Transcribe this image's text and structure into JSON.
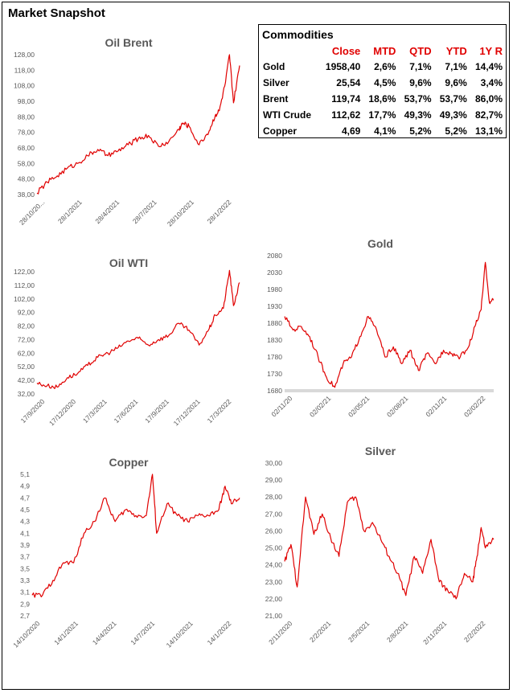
{
  "page": {
    "title": "Market Snapshot"
  },
  "commodities": {
    "title": "Commodities",
    "columns": [
      "",
      "Close",
      "MTD",
      "QTD",
      "YTD",
      "1Y R"
    ],
    "rows": [
      {
        "name": "Gold",
        "close": "1958,40",
        "mtd": "2,6%",
        "qtd": "7,1%",
        "ytd": "7,1%",
        "y1": "14,4%"
      },
      {
        "name": "Silver",
        "close": "25,54",
        "mtd": "4,5%",
        "qtd": "9,6%",
        "ytd": "9,6%",
        "y1": "3,4%"
      },
      {
        "name": "Brent",
        "close": "119,74",
        "mtd": "18,6%",
        "qtd": "53,7%",
        "ytd": "53,7%",
        "y1": "86,0%"
      },
      {
        "name": "WTI Crude",
        "close": "112,62",
        "mtd": "17,7%",
        "qtd": "49,3%",
        "ytd": "49,3%",
        "y1": "82,7%"
      },
      {
        "name": "Copper",
        "close": "4,69",
        "mtd": "4,1%",
        "qtd": "5,2%",
        "ytd": "5,2%",
        "y1": "13,1%"
      }
    ]
  },
  "chart_data": [
    {
      "id": "brent",
      "type": "line",
      "title": "Oil Brent",
      "color": "#e00000",
      "ylim": [
        38,
        128
      ],
      "yticks": [
        "38,00",
        "48,00",
        "58,00",
        "68,00",
        "78,00",
        "88,00",
        "98,00",
        "108,00",
        "118,00",
        "128,00"
      ],
      "xticks": [
        "28/10/20...",
        "28/1/2021",
        "28/4/2021",
        "28/7/2021",
        "28/10/2021",
        "28/1/2022"
      ],
      "x": [
        0,
        0.05,
        0.1,
        0.15,
        0.2,
        0.25,
        0.3,
        0.35,
        0.4,
        0.45,
        0.5,
        0.55,
        0.6,
        0.65,
        0.7,
        0.72,
        0.75,
        0.8,
        0.85,
        0.88,
        0.9,
        0.93,
        0.95,
        0.97,
        1.0
      ],
      "y": [
        39,
        46,
        50,
        55,
        58,
        63,
        67,
        63,
        66,
        70,
        74,
        76,
        69,
        72,
        80,
        84,
        82,
        70,
        79,
        89,
        92,
        110,
        128,
        97,
        121
      ]
    },
    {
      "id": "wti",
      "type": "line",
      "title": "Oil WTI",
      "color": "#e00000",
      "ylim": [
        32,
        122
      ],
      "yticks": [
        "32,00",
        "42,00",
        "52,00",
        "62,00",
        "72,00",
        "82,00",
        "92,00",
        "102,00",
        "112,00",
        "122,00"
      ],
      "xticks": [
        "17/9/2020",
        "17/12/2020",
        "17/3/2021",
        "17/6/2021",
        "17/9/2021",
        "17/12/2021",
        "17/3/2022"
      ],
      "x": [
        0,
        0.05,
        0.1,
        0.15,
        0.2,
        0.25,
        0.3,
        0.35,
        0.4,
        0.45,
        0.5,
        0.55,
        0.6,
        0.65,
        0.7,
        0.75,
        0.8,
        0.85,
        0.88,
        0.92,
        0.95,
        0.97,
        1.0
      ],
      "y": [
        40,
        38,
        37,
        44,
        47,
        53,
        59,
        62,
        66,
        71,
        73,
        68,
        72,
        75,
        84,
        79,
        68,
        80,
        90,
        95,
        123,
        97,
        114
      ]
    },
    {
      "id": "gold",
      "type": "line",
      "title": "Gold",
      "color": "#e00000",
      "ylim": [
        1680,
        2080
      ],
      "yticks": [
        "1680",
        "1730",
        "1780",
        "1830",
        "1880",
        "1930",
        "1980",
        "2030",
        "2080"
      ],
      "xticks": [
        "02/11/20",
        "02/02/21",
        "02/05/21",
        "02/08/21",
        "02/11/21",
        "02/02/22"
      ],
      "x": [
        0,
        0.04,
        0.08,
        0.12,
        0.16,
        0.2,
        0.24,
        0.28,
        0.32,
        0.36,
        0.4,
        0.44,
        0.48,
        0.52,
        0.56,
        0.6,
        0.64,
        0.68,
        0.72,
        0.76,
        0.8,
        0.84,
        0.88,
        0.91,
        0.94,
        0.96,
        0.98,
        1.0
      ],
      "y": [
        1900,
        1860,
        1870,
        1840,
        1780,
        1720,
        1690,
        1760,
        1780,
        1840,
        1900,
        1860,
        1780,
        1810,
        1760,
        1800,
        1740,
        1790,
        1760,
        1800,
        1790,
        1780,
        1810,
        1870,
        1920,
        2060,
        1940,
        1950
      ]
    },
    {
      "id": "copper",
      "type": "line",
      "title": "Copper",
      "color": "#e00000",
      "ylim": [
        2.7,
        5.1
      ],
      "yticks": [
        "2,7",
        "2,9",
        "3,1",
        "3,3",
        "3,5",
        "3,7",
        "3,9",
        "4,1",
        "4,3",
        "4,5",
        "4,7",
        "4,9",
        "5,1"
      ],
      "xticks": [
        "14/10/2020",
        "14/1/2021",
        "14/4/2021",
        "14/7/2021",
        "14/10/2021",
        "14/1/2022"
      ],
      "x": [
        0,
        0.05,
        0.1,
        0.15,
        0.2,
        0.25,
        0.3,
        0.35,
        0.4,
        0.45,
        0.5,
        0.55,
        0.58,
        0.6,
        0.65,
        0.7,
        0.75,
        0.8,
        0.85,
        0.9,
        0.93,
        0.96,
        1.0
      ],
      "y": [
        3.05,
        3.05,
        3.3,
        3.6,
        3.6,
        4.1,
        4.3,
        4.7,
        4.3,
        4.5,
        4.4,
        4.4,
        5.1,
        4.1,
        4.6,
        4.4,
        4.3,
        4.4,
        4.4,
        4.5,
        4.9,
        4.6,
        4.7
      ]
    },
    {
      "id": "silver",
      "type": "line",
      "title": "Silver",
      "color": "#e00000",
      "ylim": [
        21,
        30
      ],
      "yticks": [
        "21,00",
        "22,00",
        "23,00",
        "24,00",
        "25,00",
        "26,00",
        "27,00",
        "28,00",
        "29,00",
        "30,00"
      ],
      "xticks": [
        "2/11/2020",
        "2/2/2021",
        "2/5/2021",
        "2/8/2021",
        "2/11/2021",
        "2/2/2022"
      ],
      "x": [
        0,
        0.03,
        0.06,
        0.1,
        0.14,
        0.18,
        0.22,
        0.26,
        0.3,
        0.34,
        0.38,
        0.42,
        0.46,
        0.5,
        0.54,
        0.58,
        0.62,
        0.66,
        0.7,
        0.74,
        0.78,
        0.82,
        0.86,
        0.9,
        0.92,
        0.94,
        0.96,
        1.0
      ],
      "y": [
        24.2,
        25.2,
        22.7,
        28,
        25.8,
        27,
        25.6,
        24.5,
        27.7,
        28,
        26,
        26.5,
        25.5,
        24.5,
        23.5,
        22.2,
        24.5,
        23.5,
        25.5,
        23,
        22.5,
        22,
        23.5,
        23,
        24.5,
        26.2,
        25,
        25.5
      ]
    }
  ]
}
